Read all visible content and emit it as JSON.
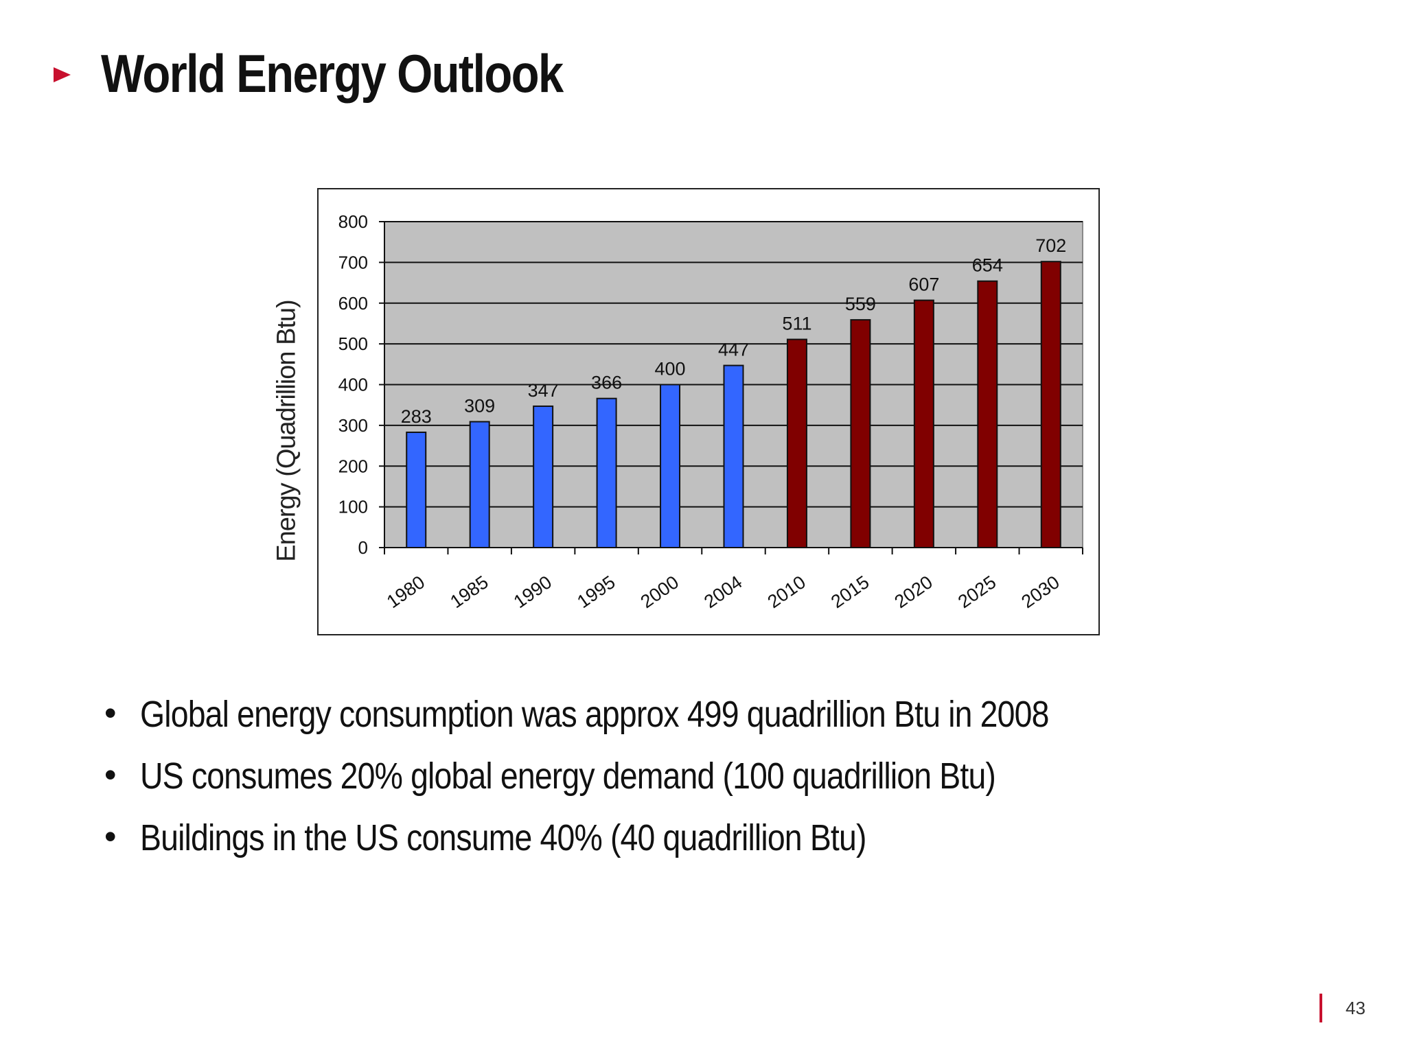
{
  "slide": {
    "title": "World Energy Outlook",
    "page_number": "43",
    "accent_color": "#c8102e",
    "bullets": [
      "Global energy consumption was approx 499 quadrillion Btu in 2008",
      "US consumes 20% global energy demand (100 quadrillion Btu)",
      "Buildings in the US consume 40% (40 quadrillion Btu)"
    ]
  },
  "chart_data": {
    "type": "bar",
    "title": "",
    "xlabel": "",
    "ylabel": "Energy (Quadrillion Btu)",
    "ylim": [
      0,
      800
    ],
    "yticks": [
      0,
      100,
      200,
      300,
      400,
      500,
      600,
      700,
      800
    ],
    "grid": true,
    "categories": [
      "1980",
      "1985",
      "1990",
      "1995",
      "2000",
      "2004",
      "2010",
      "2015",
      "2020",
      "2025",
      "2030"
    ],
    "values": [
      283,
      309,
      347,
      366,
      400,
      447,
      511,
      559,
      607,
      654,
      702
    ],
    "data_labels": [
      "283",
      "309",
      "347",
      "366",
      "400",
      "447",
      "511",
      "559",
      "607",
      "654",
      "702"
    ],
    "colors": {
      "historical": "#3366ff",
      "projected": "#800000",
      "plot_background": "#c0c0c0"
    },
    "bar_groups": [
      "historical",
      "historical",
      "historical",
      "historical",
      "historical",
      "historical",
      "projected",
      "projected",
      "projected",
      "projected",
      "projected"
    ]
  }
}
